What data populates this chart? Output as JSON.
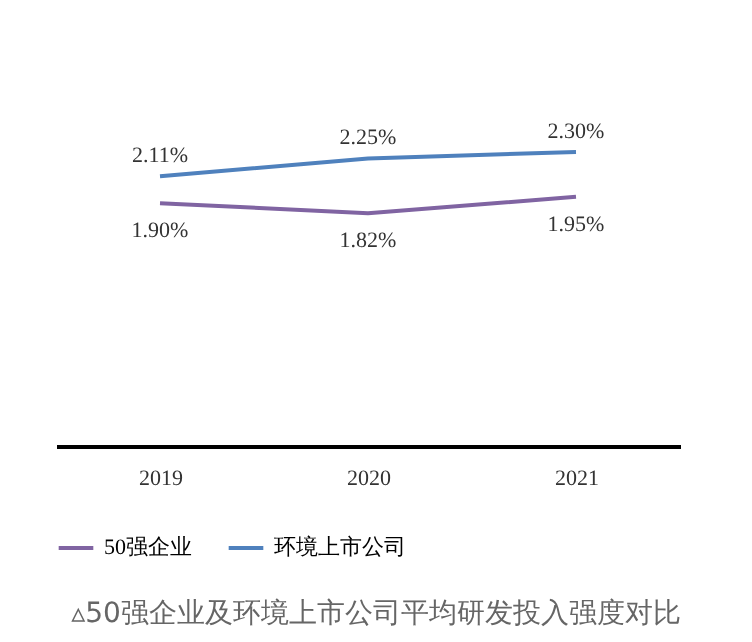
{
  "chart_data": {
    "type": "line",
    "categories": [
      "2019",
      "2020",
      "2021"
    ],
    "series": [
      {
        "name": "50强企业",
        "color": "#8064a2",
        "values": [
          1.9,
          1.82,
          1.95
        ],
        "value_labels": [
          "1.90%",
          "1.82%",
          "1.95%"
        ]
      },
      {
        "name": "环境上市公司",
        "color": "#4f81bd",
        "values": [
          2.11,
          2.25,
          2.3
        ],
        "value_labels": [
          "2.11%",
          "2.25%",
          "2.30%"
        ]
      }
    ],
    "tick_labels": "x",
    "legend": "bottom",
    "marker": "none",
    "line_style": "solid",
    "annotations": [
      "▵50强企业及环境上市公司平均研发投入强度对比"
    ]
  }
}
